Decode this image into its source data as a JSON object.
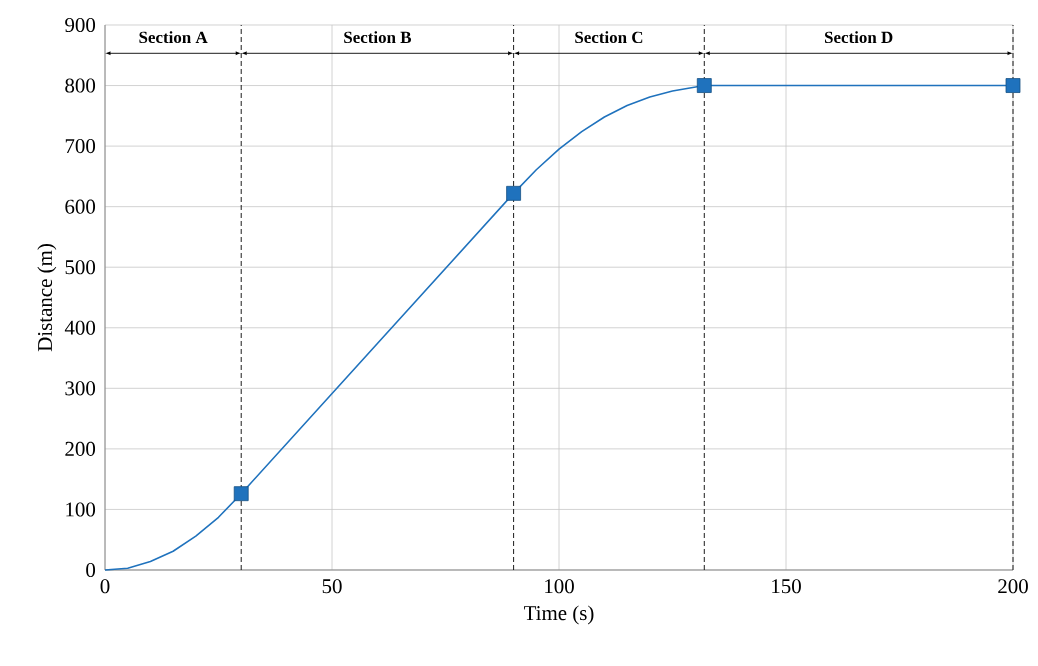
{
  "chart_data": {
    "type": "line",
    "xlabel": "Time (s)",
    "ylabel": "Distance (m)",
    "xlim": [
      0,
      200
    ],
    "ylim": [
      0,
      900
    ],
    "xticks": [
      0,
      50,
      100,
      150,
      200
    ],
    "yticks": [
      0,
      100,
      200,
      300,
      400,
      500,
      600,
      700,
      800,
      900
    ],
    "grid": true,
    "series": [
      {
        "color": "#1f72bd",
        "marker": "none",
        "line_style": "solid",
        "x": [
          0,
          5,
          10,
          15,
          20,
          25,
          30,
          60,
          90,
          95,
          100,
          105,
          110,
          115,
          120,
          125,
          132,
          200
        ],
        "values": [
          0,
          3,
          14,
          31,
          56,
          87,
          126,
          374,
          622,
          661,
          695,
          724,
          748,
          767,
          781,
          791,
          800,
          800
        ]
      },
      {
        "type": "scatter",
        "color": "#1f72bd",
        "marker": "square",
        "x": [
          30,
          90,
          132,
          200
        ],
        "values": [
          126,
          622,
          800,
          800
        ]
      }
    ],
    "ref_lines": [
      {
        "axis": "x",
        "value": 30,
        "color": "#000000",
        "line_style": "dashed"
      },
      {
        "axis": "x",
        "value": 90,
        "color": "#000000",
        "line_style": "dashed"
      },
      {
        "axis": "x",
        "value": 132,
        "color": "#000000",
        "line_style": "dashed"
      },
      {
        "axis": "x",
        "value": 200,
        "color": "#000000",
        "line_style": "dashed"
      }
    ],
    "annotations": [
      "Section A",
      "Section B",
      "Section C",
      "Section D"
    ]
  }
}
